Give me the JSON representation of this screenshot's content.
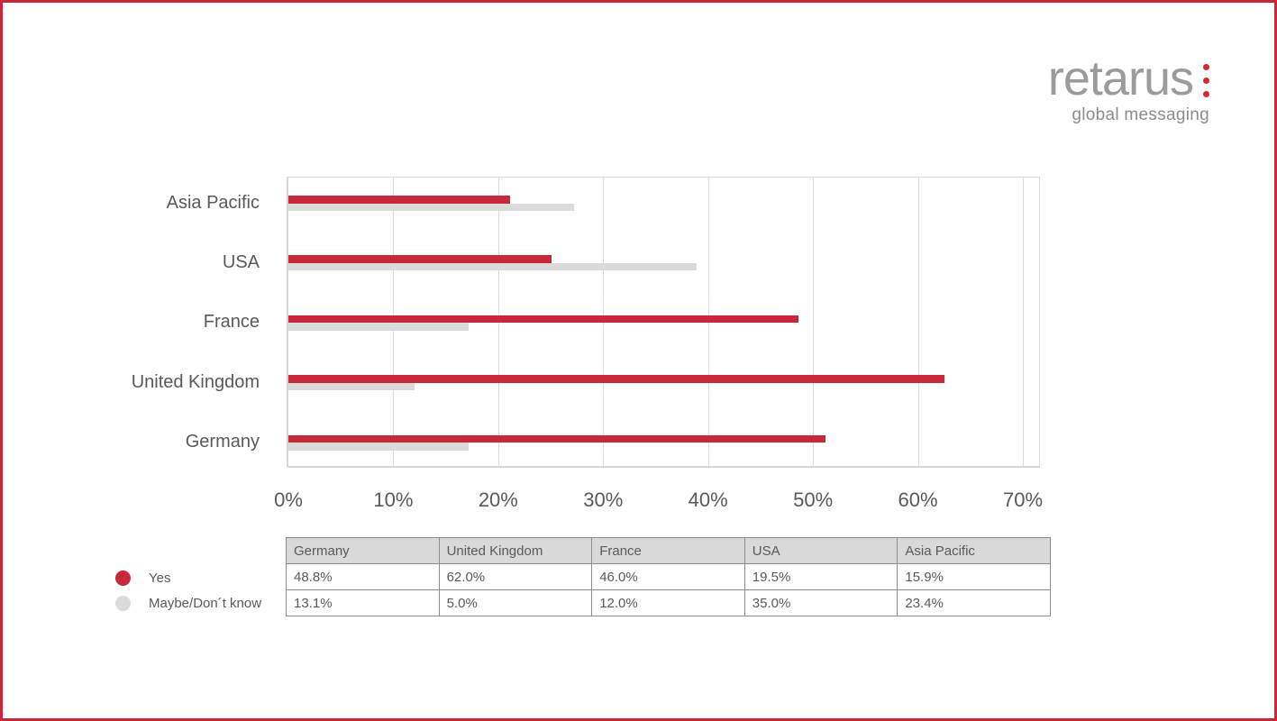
{
  "page": {
    "background": "#FFFFFF",
    "border_color": "#C8293A"
  },
  "logo": {
    "brand": "retarus",
    "tagline": "global messaging",
    "brand_color": "#9B9B9B",
    "tagline_color": "#8C8C8C",
    "dots_color": "#D7282F",
    "dots_count": 3
  },
  "chart_data": {
    "type": "bar",
    "orientation": "horizontal",
    "title": "",
    "categories": [
      "Asia Pacific",
      "USA",
      "France",
      "United Kingdom",
      "Germany"
    ],
    "x_axis": {
      "tick_labels": [
        "0%",
        "10%",
        "20%",
        "30%",
        "40%",
        "50%",
        "60%",
        "70%"
      ],
      "min": 0,
      "max": 70,
      "grid": true
    },
    "series": [
      {
        "name": "Yes",
        "color": "#C8293A",
        "values": [
          15.9,
          19.5,
          46.0,
          62.0,
          48.8
        ],
        "rendered_bar_pct": [
          21.1,
          25.1,
          48.6,
          62.5,
          51.2
        ]
      },
      {
        "name": "Maybe/Don´t know",
        "color": "#DBDBDB",
        "values": [
          23.4,
          35.0,
          12.0,
          5.0,
          13.1
        ],
        "rendered_bar_pct": [
          27.2,
          38.9,
          17.2,
          12.0,
          17.2
        ]
      }
    ],
    "legend_position": "bottom-left"
  },
  "legend": {
    "items": [
      {
        "label": "Yes",
        "color": "#C8293A"
      },
      {
        "label": "Maybe/Don´t know",
        "color": "#DBDBDB"
      }
    ]
  },
  "table": {
    "header_bg": "#D9D9D9",
    "border_color": "#8C8C8C",
    "headers": [
      "Germany",
      "United Kingdom",
      "France",
      "USA",
      "Asia Pacific"
    ],
    "rows": [
      {
        "series": "Yes",
        "values": [
          "48.8%",
          "62.0%",
          "46.0%",
          "19.5%",
          "15.9%"
        ]
      },
      {
        "series": "Maybe/Don´t know",
        "values": [
          "13.1%",
          "5.0%",
          "12.0%",
          "35.0%",
          "23.4%"
        ]
      }
    ]
  }
}
